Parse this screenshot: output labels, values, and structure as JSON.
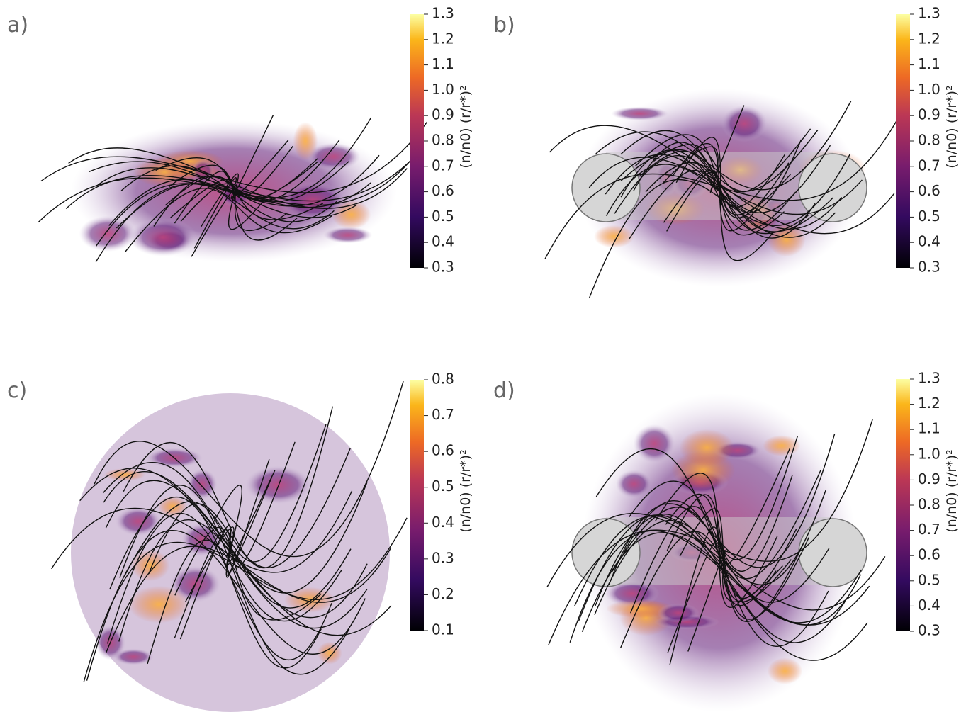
{
  "panels": [
    {
      "label": "a)",
      "colorbar": {
        "label": "(n/n0) (r/r*)²",
        "ticks": [
          "1.3",
          "1.2",
          "1.1",
          "1.0",
          "0.9",
          "0.8",
          "0.7",
          "0.6",
          "0.5",
          "0.4",
          "0.3"
        ]
      }
    },
    {
      "label": "b)",
      "colorbar": {
        "label": "(n/n0) (r/r*)²",
        "ticks": [
          "1.3",
          "1.2",
          "1.1",
          "1.0",
          "0.9",
          "0.8",
          "0.7",
          "0.6",
          "0.5",
          "0.4",
          "0.3"
        ]
      }
    },
    {
      "label": "c)",
      "colorbar": {
        "label": "(n/n0) (r/r*)²",
        "ticks": [
          "0.8",
          "0.7",
          "0.6",
          "0.5",
          "0.4",
          "0.3",
          "0.2",
          "0.1"
        ]
      }
    },
    {
      "label": "d)",
      "colorbar": {
        "label": "(n/n0) (r/r*)²",
        "ticks": [
          "1.3",
          "1.2",
          "1.1",
          "1.0",
          "0.9",
          "0.8",
          "0.7",
          "0.6",
          "0.5",
          "0.4",
          "0.3"
        ]
      }
    }
  ]
}
